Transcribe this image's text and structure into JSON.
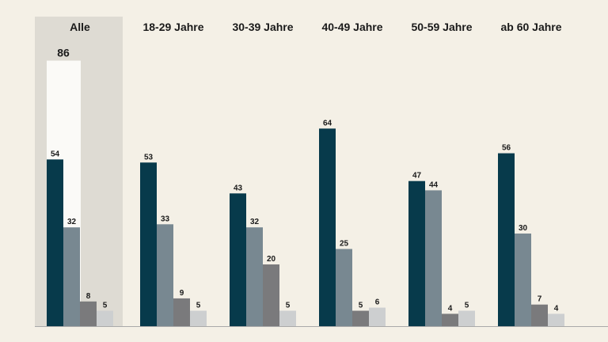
{
  "chart_data": {
    "type": "bar",
    "categories": [
      "Alle",
      "18-29 Jahre",
      "30-39 Jahre",
      "40-49 Jahre",
      "50-59 Jahre",
      "ab 60 Jahre"
    ],
    "highlight_category": "Alle",
    "total": {
      "category": "Alle",
      "value": 86
    },
    "series": [
      {
        "values": [
          54,
          53,
          43,
          64,
          47,
          56
        ],
        "color": "#073a4b"
      },
      {
        "values": [
          32,
          33,
          32,
          25,
          44,
          30
        ],
        "color": "#788891"
      },
      {
        "values": [
          8,
          9,
          20,
          5,
          4,
          7
        ],
        "color": "#7a7a7c"
      },
      {
        "values": [
          5,
          5,
          5,
          6,
          5,
          4
        ],
        "color": "#cdcfd0"
      }
    ],
    "ylim": [
      0,
      100
    ],
    "grid": false,
    "colors": {
      "background": "#f4f0e6",
      "highlight_panel": "#dedbd3",
      "total_bar": "#fbfaf7",
      "axis": "#a9a9a9"
    }
  }
}
